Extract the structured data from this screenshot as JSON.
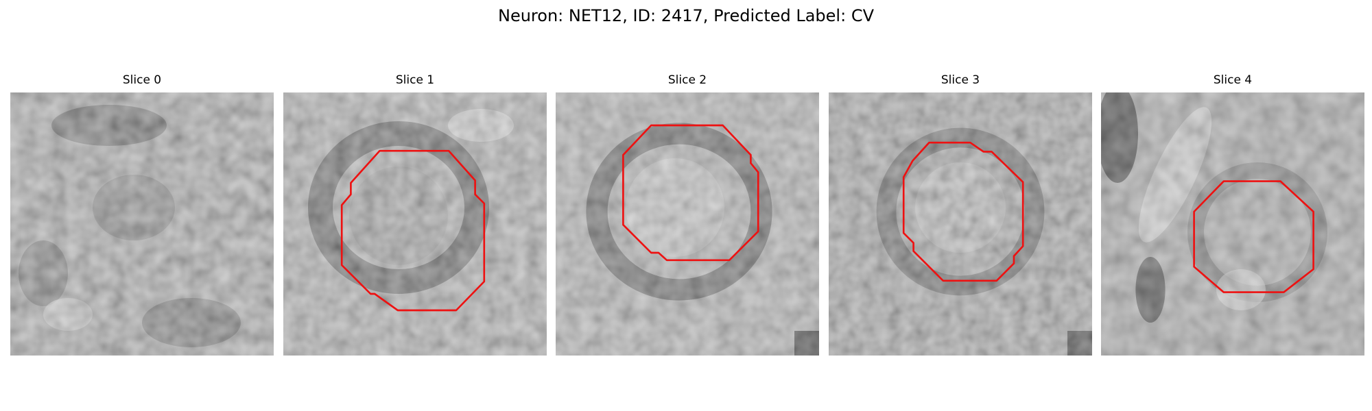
{
  "figure": {
    "title": "Neuron: NET12, ID: 2417, Predicted Label: CV"
  },
  "panels": [
    {
      "title": "Slice 0",
      "has_outline": false
    },
    {
      "title": "Slice 1",
      "has_outline": true
    },
    {
      "title": "Slice 2",
      "has_outline": true
    },
    {
      "title": "Slice 3",
      "has_outline": true
    },
    {
      "title": "Slice 4",
      "has_outline": true
    }
  ],
  "colors": {
    "outline": "#ee1111",
    "background": "#ffffff"
  },
  "colormap": "gray"
}
